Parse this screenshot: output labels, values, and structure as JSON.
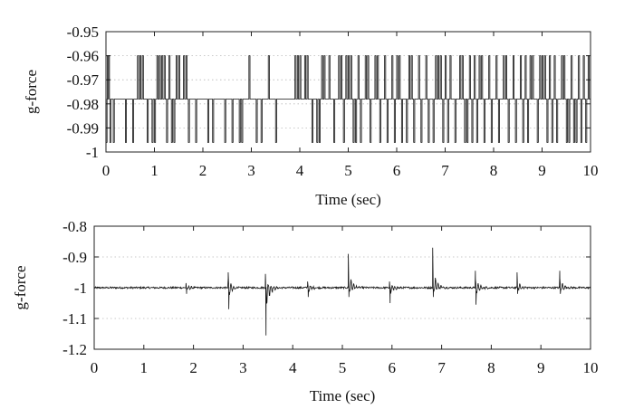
{
  "chart_data": [
    {
      "type": "line",
      "xlabel": "Time (sec)",
      "ylabel": "g-force",
      "xlim": [
        0,
        10
      ],
      "ylim": [
        -1.0,
        -0.95
      ],
      "x_ticks": [
        0,
        1,
        2,
        3,
        4,
        5,
        6,
        7,
        8,
        9,
        10
      ],
      "x_tick_labels": [
        "0",
        "1",
        "2",
        "3",
        "4",
        "5",
        "6",
        "7",
        "8",
        "9",
        "10"
      ],
      "y_ticks": [
        -0.95,
        -0.96,
        -0.97,
        -0.98,
        -0.99,
        -1.0
      ],
      "y_tick_labels": [
        "-0.95",
        "-0.96",
        "-0.97",
        "-0.98",
        "-0.99",
        "-1"
      ],
      "grid": "horizontal dotted",
      "baseline": -0.978,
      "upper_level": -0.96,
      "lower_level": -0.996,
      "spikes_up": [
        0.03,
        0.05,
        0.65,
        0.7,
        0.75,
        1.05,
        1.1,
        1.15,
        1.2,
        1.3,
        1.45,
        1.5,
        1.6,
        1.65,
        2.95,
        3.35,
        3.9,
        3.95,
        4.0,
        4.1,
        4.15,
        4.45,
        4.5,
        4.6,
        4.8,
        4.85,
        4.95,
        5.0,
        5.05,
        5.2,
        5.35,
        5.4,
        5.55,
        5.6,
        5.75,
        5.9,
        6.0,
        6.05,
        6.25,
        6.3,
        6.45,
        6.6,
        6.8,
        6.85,
        6.9,
        7.0,
        7.1,
        7.3,
        7.35,
        7.5,
        7.6,
        7.7,
        7.75,
        7.9,
        8.05,
        8.2,
        8.25,
        8.4,
        8.55,
        8.65,
        8.75,
        8.8,
        8.95,
        9.0,
        9.05,
        9.15,
        9.25,
        9.4,
        9.45,
        9.6,
        9.75,
        9.85,
        9.95
      ],
      "spikes_down": [
        0.0,
        0.08,
        0.15,
        0.4,
        0.55,
        0.85,
        0.95,
        1.0,
        1.25,
        1.35,
        1.4,
        1.7,
        1.85,
        2.1,
        2.2,
        2.45,
        2.6,
        2.75,
        2.8,
        3.1,
        3.2,
        3.5,
        4.25,
        4.35,
        4.4,
        4.7,
        4.9,
        5.1,
        5.15,
        5.25,
        5.45,
        5.65,
        5.8,
        5.95,
        6.1,
        6.2,
        6.35,
        6.5,
        6.65,
        6.75,
        6.95,
        7.05,
        7.2,
        7.4,
        7.45,
        7.55,
        7.65,
        7.8,
        7.95,
        8.1,
        8.3,
        8.45,
        8.6,
        8.7,
        8.9,
        9.1,
        9.2,
        9.3,
        9.5,
        9.55,
        9.65,
        9.7,
        9.8,
        9.9
      ]
    },
    {
      "type": "line",
      "xlabel": "Time (sec)",
      "ylabel": "g-force",
      "xlim": [
        0,
        10
      ],
      "ylim": [
        -1.2,
        -0.8
      ],
      "x_ticks": [
        0,
        1,
        2,
        3,
        4,
        5,
        6,
        7,
        8,
        9,
        10
      ],
      "x_tick_labels": [
        "0",
        "1",
        "2",
        "3",
        "4",
        "5",
        "6",
        "7",
        "8",
        "9",
        "10"
      ],
      "y_ticks": [
        -0.8,
        -0.9,
        -1.0,
        -1.1,
        -1.2
      ],
      "y_tick_labels": [
        "-0.8",
        "-0.9",
        "-1",
        "-1.1",
        "-1.2"
      ],
      "grid": "horizontal dotted",
      "baseline": -1.0,
      "bursts": [
        {
          "t": 1.85,
          "peak": -0.985,
          "trough": -1.02
        },
        {
          "t": 2.7,
          "peak": -0.95,
          "trough": -1.07
        },
        {
          "t": 3.45,
          "peak": -0.955,
          "trough": -1.155
        },
        {
          "t": 4.3,
          "peak": -0.98,
          "trough": -1.03
        },
        {
          "t": 5.12,
          "peak": -0.89,
          "trough": -1.03
        },
        {
          "t": 5.95,
          "peak": -0.98,
          "trough": -1.05
        },
        {
          "t": 6.82,
          "peak": -0.87,
          "trough": -1.03
        },
        {
          "t": 7.68,
          "peak": -0.945,
          "trough": -1.055
        },
        {
          "t": 8.52,
          "peak": -0.95,
          "trough": -1.02
        },
        {
          "t": 9.38,
          "peak": -0.945,
          "trough": -1.02
        }
      ]
    }
  ]
}
